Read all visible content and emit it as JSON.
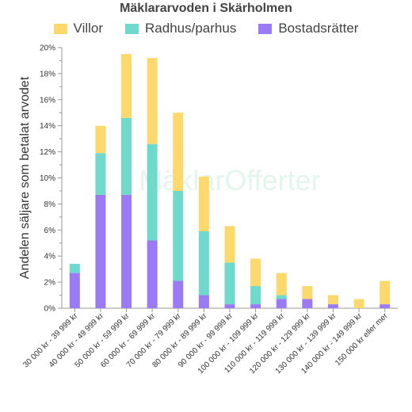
{
  "chart_data": {
    "type": "bar",
    "stacked": true,
    "title": "Mäklararvoden i Skärholmen",
    "ylabel": "Andelen säljare som betalat arvodet",
    "xlabel": "",
    "ylim": [
      0,
      20
    ],
    "y_ticks": [
      "0%",
      "2%",
      "4%",
      "6%",
      "8%",
      "10%",
      "12%",
      "14%",
      "16%",
      "18%",
      "20%"
    ],
    "legend_position": "top",
    "grid": false,
    "categories": [
      "30 000 kr - 39 999 kr",
      "40 000 kr - 49 999 kr",
      "50 000 kr - 59 999 kr",
      "60 000 kr - 69 999 kr",
      "70 000 kr - 79 999 kr",
      "80 000 kr - 89 999 kr",
      "90 000 kr - 99 999 kr",
      "100 000 kr - 109 999 kr",
      "110 000 kr - 119 999 kr",
      "120 000 kr - 129 999 kr",
      "130 000 kr - 139 999 kr",
      "140 000 kr - 149 999 kr",
      "150 000 kr eller mer"
    ],
    "series": [
      {
        "name": "Bostadsrätter",
        "color": "#9b7bf5",
        "values": [
          2.7,
          8.7,
          8.7,
          5.2,
          2.1,
          1.0,
          0.3,
          0.3,
          0.7,
          0.7,
          0.3,
          0.0,
          0.3
        ]
      },
      {
        "name": "Radhus/parhus",
        "color": "#6fd9cc",
        "values": [
          0.7,
          3.2,
          5.9,
          7.4,
          6.9,
          4.9,
          3.2,
          1.4,
          0.3,
          0.0,
          0.0,
          0.0,
          0.0
        ]
      },
      {
        "name": "Villor",
        "color": "#fdd86c",
        "values": [
          0.0,
          2.1,
          4.9,
          6.6,
          6.0,
          4.2,
          2.8,
          2.1,
          1.7,
          1.0,
          0.7,
          0.7,
          1.8
        ]
      }
    ],
    "legend_order": [
      "Villor",
      "Radhus/parhus",
      "Bostadsrätter"
    ]
  },
  "watermark": "MäklarOfferter"
}
